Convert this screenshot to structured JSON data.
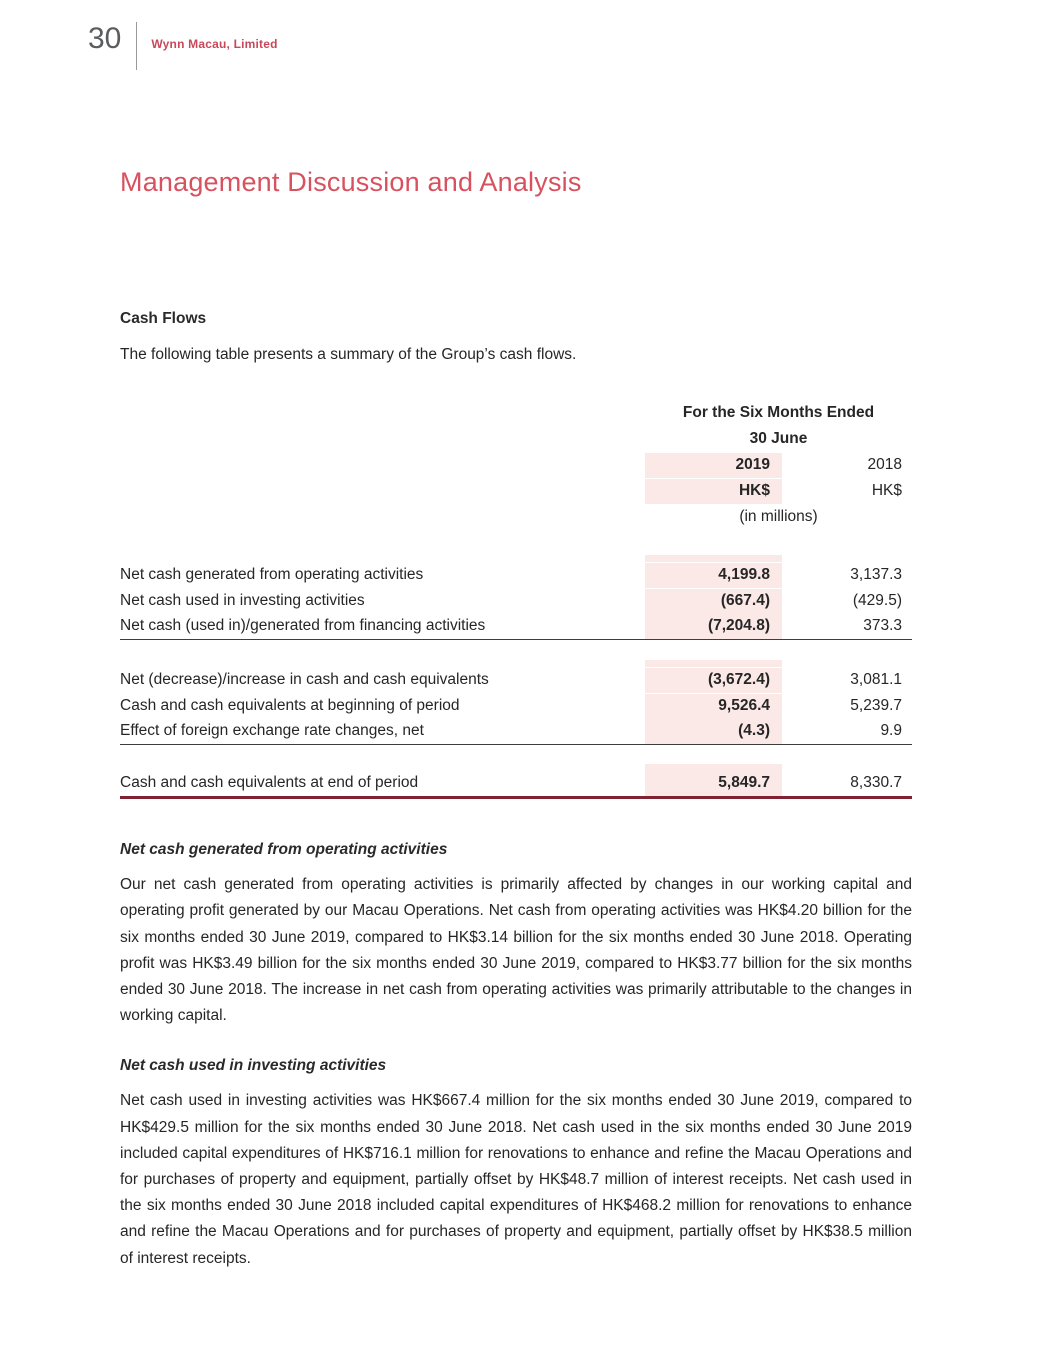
{
  "header": {
    "page_number": "30",
    "company": "Wynn Macau, Limited"
  },
  "title": "Management Discussion and Analysis",
  "cash_flows": {
    "heading": "Cash Flows",
    "intro": "The following table presents a summary of the Group’s cash flows."
  },
  "table": {
    "period_line1": "For the Six Months Ended",
    "period_line2": "30 June",
    "col_2019": "2019",
    "col_2018": "2018",
    "currency_2019": "HK$",
    "currency_2018": "HK$",
    "units": "(in millions)",
    "rows": [
      {
        "label": "Net cash generated from operating activities",
        "y2019": "4,199.8",
        "y2018": "3,137.3"
      },
      {
        "label": "Net cash used in investing activities",
        "y2019": "(667.4)",
        "y2018": "(429.5)"
      },
      {
        "label": "Net cash (used in)/generated from financing activities",
        "y2019": "(7,204.8)",
        "y2018": "373.3"
      },
      {
        "label": "Net (decrease)/increase in cash and cash equivalents",
        "y2019": "(3,672.4)",
        "y2018": "3,081.1"
      },
      {
        "label": "Cash and cash equivalents at beginning of period",
        "y2019": "9,526.4",
        "y2018": "5,239.7"
      },
      {
        "label": "Effect of foreign exchange rate changes, net",
        "y2019": "(4.3)",
        "y2018": "9.9"
      }
    ],
    "total": {
      "label": "Cash and cash equivalents at end of period",
      "y2019": "5,849.7",
      "y2018": "8,330.7"
    }
  },
  "sections": [
    {
      "heading": "Net cash generated from operating activities",
      "body": "Our net cash generated from operating activities is primarily affected by changes in our working capital and operating profit generated by our Macau Operations. Net cash from operating activities was HK$4.20 billion for the six months ended 30 June 2019, compared to HK$3.14 billion for the six months ended 30 June 2018. Operating profit was HK$3.49 billion for the six months ended 30 June 2019, compared to HK$3.77 billion for the six months ended 30 June 2018. The increase in net cash from operating activities was primarily attributable to the changes in working capital."
    },
    {
      "heading": "Net cash used in investing activities",
      "body": "Net cash used in investing activities was HK$667.4 million for the six months ended 30 June 2019, compared to HK$429.5 million for the six months ended 30 June 2018. Net cash used in the six months ended 30 June 2019 included capital expenditures of HK$716.1 million for renovations to enhance and refine the Macau Operations and for purchases of property and equipment, partially offset by HK$48.7 million of interest receipts. Net cash used in the six months ended 30 June 2018 included capital expenditures of HK$468.2 million for renovations to enhance and refine the Macau Operations and for purchases of property and equipment, partially offset by HK$38.5 million of interest receipts."
    }
  ],
  "colors": {
    "accent_red": "#d8515f",
    "band_pink": "#fbe9e7",
    "total_rule_maroon": "#7d2331"
  }
}
